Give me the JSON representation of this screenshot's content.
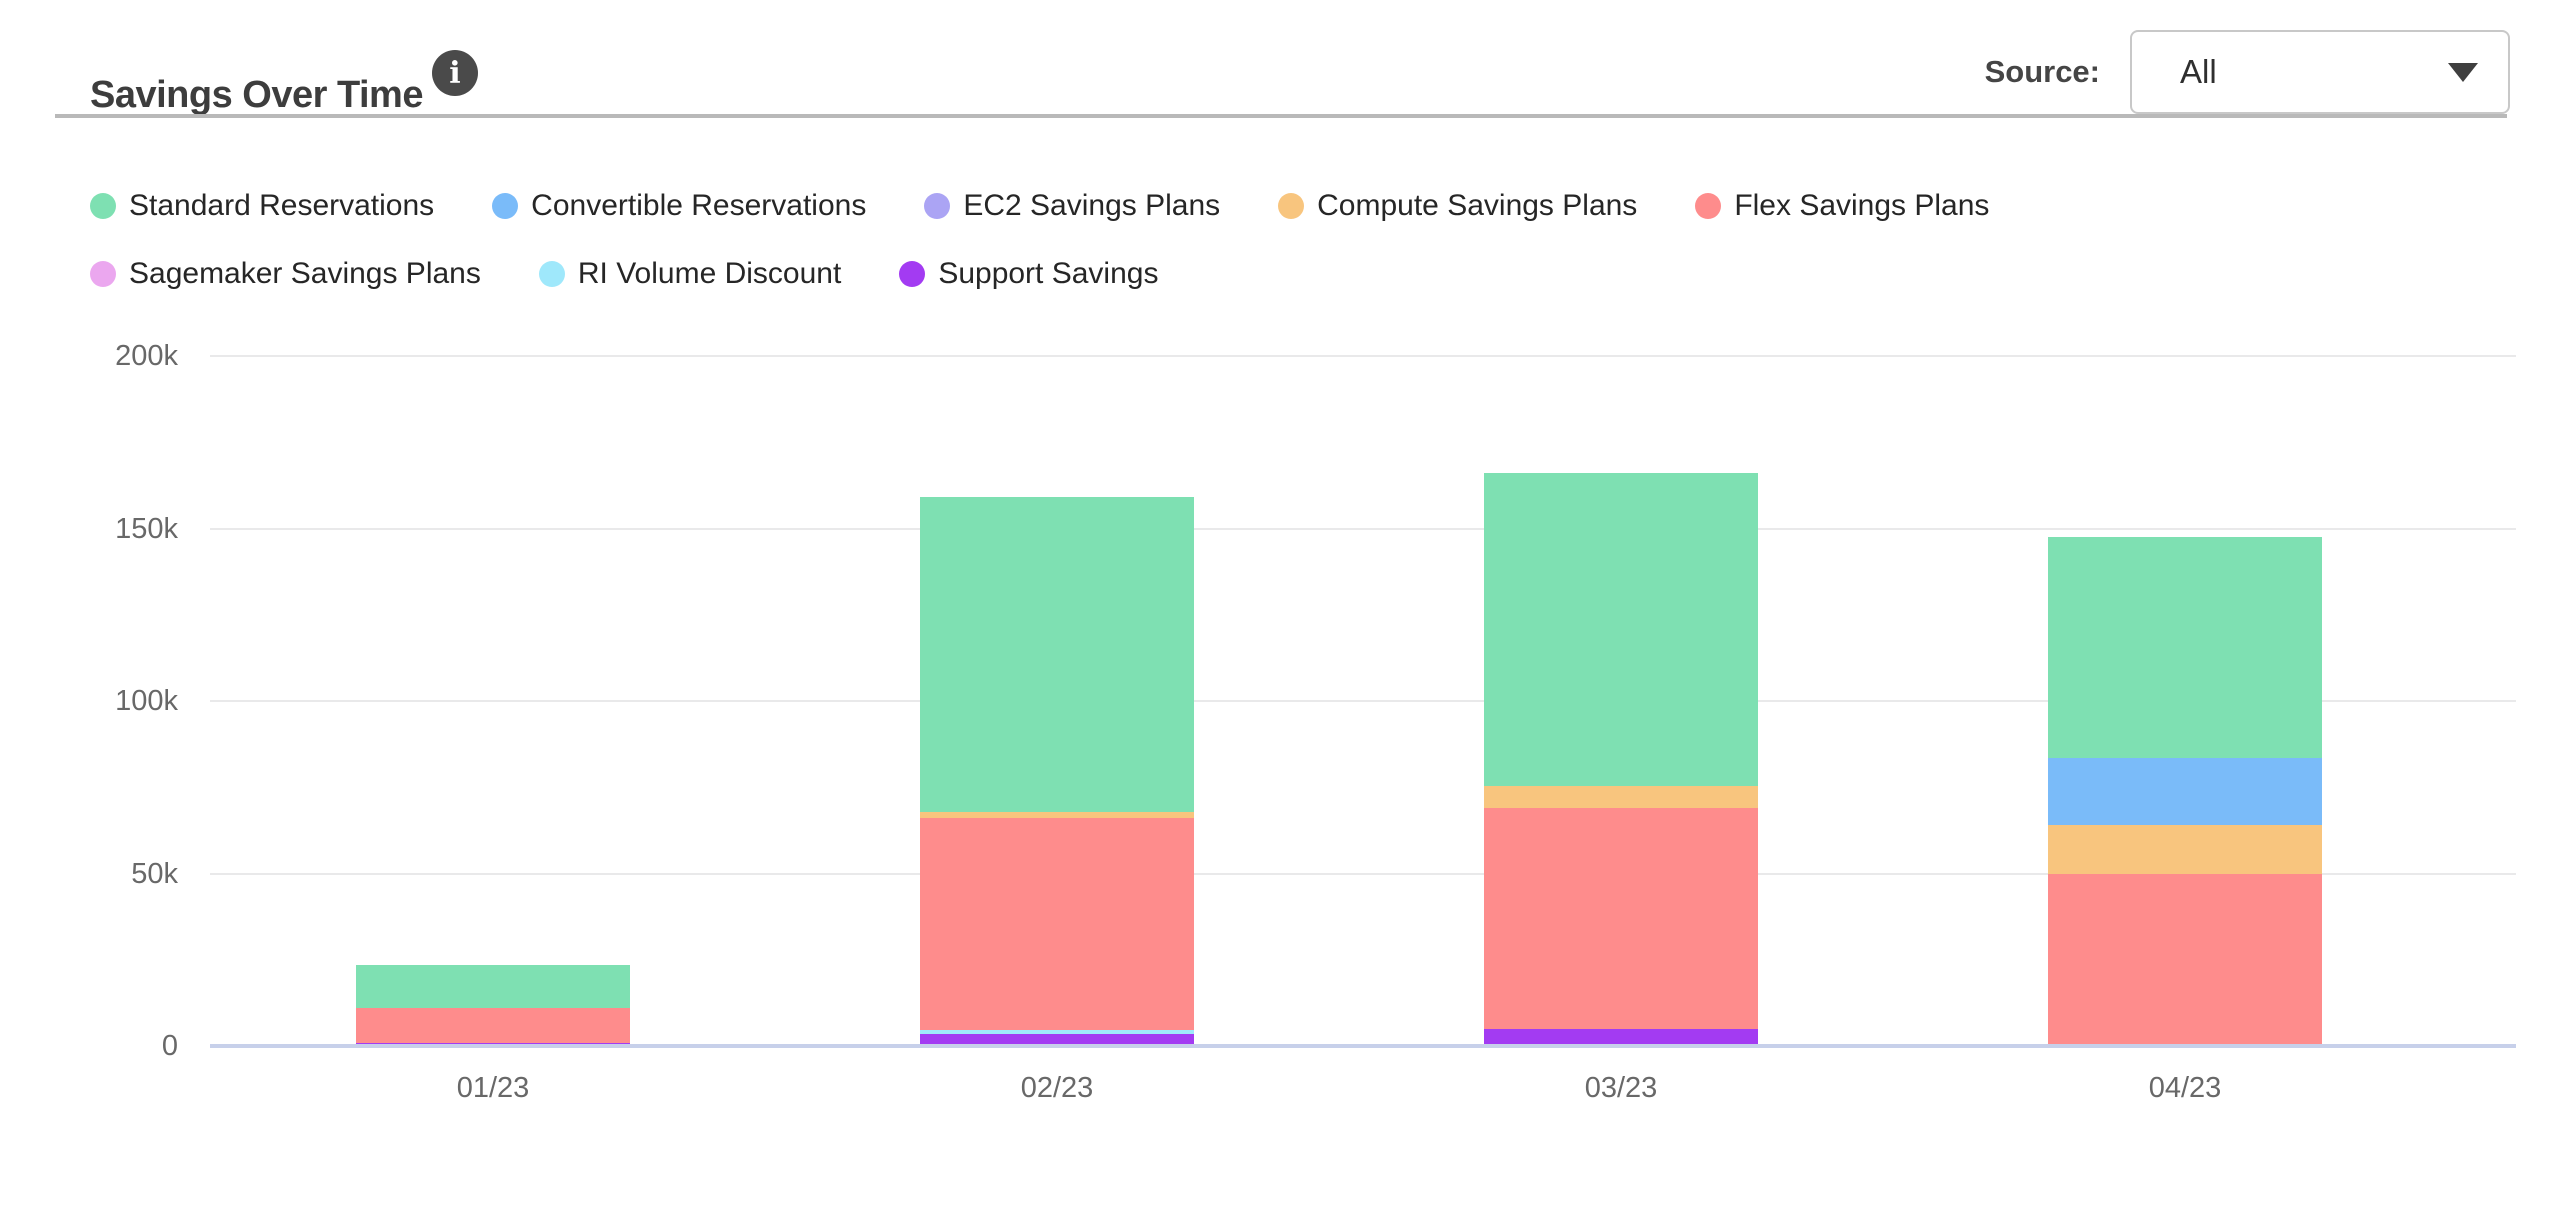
{
  "header": {
    "title": "Savings Over Time",
    "info_glyph": "i",
    "source_label": "Source:",
    "source_value": "All"
  },
  "chart_data": {
    "type": "bar",
    "stacked": true,
    "title": "Savings Over Time",
    "categories": [
      "01/23",
      "02/23",
      "03/23",
      "04/23"
    ],
    "series": [
      {
        "id": "support",
        "label": "Support Savings",
        "color": "#A33BF2",
        "values": [
          1000,
          3500,
          5000,
          0
        ]
      },
      {
        "id": "ri_volume",
        "label": "RI Volume Discount",
        "color": "#9FE8FB",
        "values": [
          0,
          1200,
          0,
          0
        ]
      },
      {
        "id": "sagemaker",
        "label": "Sagemaker Savings Plans",
        "color": "#EBA7EF",
        "values": [
          0,
          0,
          0,
          0
        ]
      },
      {
        "id": "flex",
        "label": "Flex Savings Plans",
        "color": "#FE8C8C",
        "values": [
          10000,
          61500,
          64000,
          50000
        ]
      },
      {
        "id": "compute",
        "label": "Compute Savings Plans",
        "color": "#F8C57E",
        "values": [
          0,
          1500,
          6500,
          14000
        ]
      },
      {
        "id": "ec2",
        "label": "EC2 Savings Plans",
        "color": "#ABA4F4",
        "values": [
          0,
          0,
          0,
          0
        ]
      },
      {
        "id": "convertible",
        "label": "Convertible Reservations",
        "color": "#7ABBF9",
        "values": [
          0,
          0,
          0,
          19500
        ]
      },
      {
        "id": "standard",
        "label": "Standard Reservations",
        "color": "#7EE0B2",
        "values": [
          12500,
          91500,
          90500,
          64000
        ]
      }
    ],
    "totals": [
      23500,
      159200,
      166000,
      147500
    ],
    "ylim": [
      0,
      200000
    ],
    "yticks": [
      {
        "value": 0,
        "label": "0"
      },
      {
        "value": 50000,
        "label": "50k"
      },
      {
        "value": 100000,
        "label": "100k"
      },
      {
        "value": 150000,
        "label": "150k"
      },
      {
        "value": 200000,
        "label": "200k"
      }
    ],
    "xlabel": "",
    "ylabel": "",
    "grid": "horizontal",
    "legend_position": "top",
    "legend_order": [
      "standard",
      "convertible",
      "ec2",
      "compute",
      "flex",
      "sagemaker",
      "ri_volume",
      "support"
    ],
    "legend_break_after": 5
  },
  "colors": {
    "axis_baseline": "#c7d0ea",
    "gridline": "#e9e9ea",
    "axis_text": "#686868",
    "divider": "#b9b9b9"
  }
}
